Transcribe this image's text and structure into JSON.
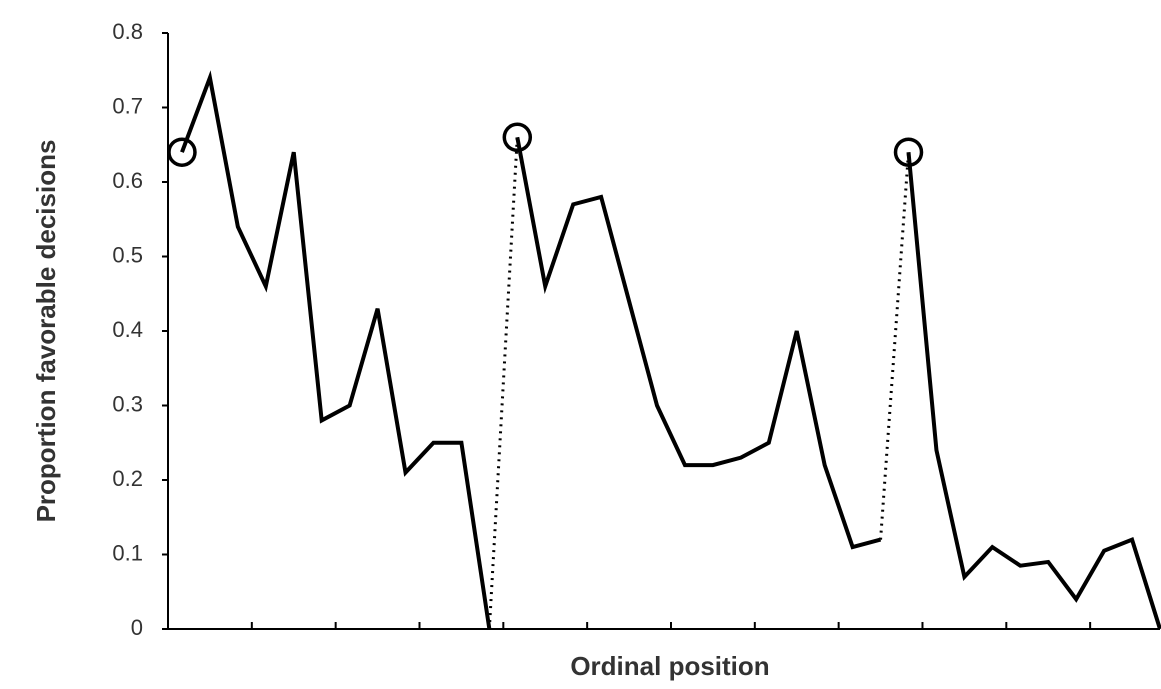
{
  "chart_data": {
    "type": "line",
    "xlabel": "Ordinal position",
    "ylabel": "Proportion favorable decisions",
    "series": [
      {
        "color": "#000000",
        "x": [
          0,
          1,
          2,
          3,
          4,
          5,
          6,
          7,
          8,
          9,
          10,
          11
        ],
        "values": [
          0.64,
          0.74,
          0.54,
          0.46,
          0.64,
          0.28,
          0.3,
          0.43,
          0.21,
          0.25,
          0.25,
          0.0
        ]
      },
      {
        "color": "#000000",
        "x": [
          12,
          13,
          14,
          15,
          16,
          17,
          18,
          19,
          20,
          21,
          22,
          23,
          24,
          25
        ],
        "values": [
          0.66,
          0.46,
          0.57,
          0.58,
          0.44,
          0.3,
          0.22,
          0.22,
          0.23,
          0.25,
          0.4,
          0.22,
          0.11,
          0.12
        ]
      },
      {
        "color": "#000000",
        "x": [
          26,
          27,
          28,
          29,
          30,
          31,
          32,
          33,
          34,
          35
        ],
        "values": [
          0.64,
          0.24,
          0.07,
          0.11,
          0.085,
          0.09,
          0.04,
          0.105,
          0.12,
          0.0
        ]
      }
    ],
    "connector": "dotted",
    "first_marker": "circle",
    "xlim": [
      -0.5,
      35
    ],
    "xticks": [
      -0.5,
      2.5,
      5.5,
      8.5,
      11.5,
      14.5,
      17.5,
      20.5,
      23.5,
      26.5,
      29.5,
      32.5
    ],
    "ylim": [
      0,
      0.8
    ],
    "yticks": [
      0,
      0.1,
      0.2,
      0.3,
      0.4,
      0.5,
      0.6,
      0.7,
      0.8
    ]
  }
}
